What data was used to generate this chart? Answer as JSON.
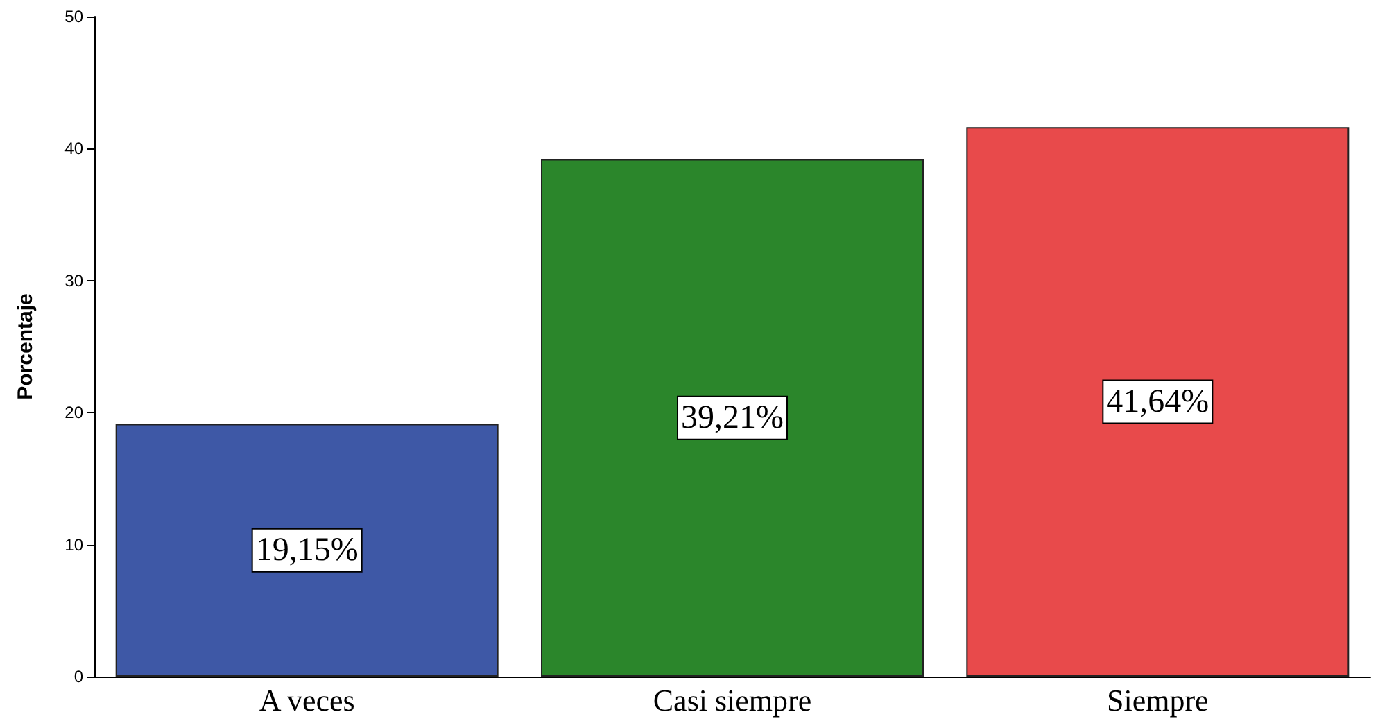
{
  "chart_data": {
    "type": "bar",
    "ylabel": "Porcentaje",
    "categories": [
      "A veces",
      "Casi siempre",
      "Siempre"
    ],
    "values": [
      19.15,
      39.21,
      41.64
    ],
    "value_labels": [
      "19,15%",
      "39,21%",
      "41,64%"
    ],
    "colors": [
      "#3e58a6",
      "#2b862b",
      "#e84a4b"
    ],
    "ylim": [
      0,
      50
    ],
    "yticks": [
      0,
      10,
      20,
      30,
      40,
      50
    ],
    "grid": false
  }
}
